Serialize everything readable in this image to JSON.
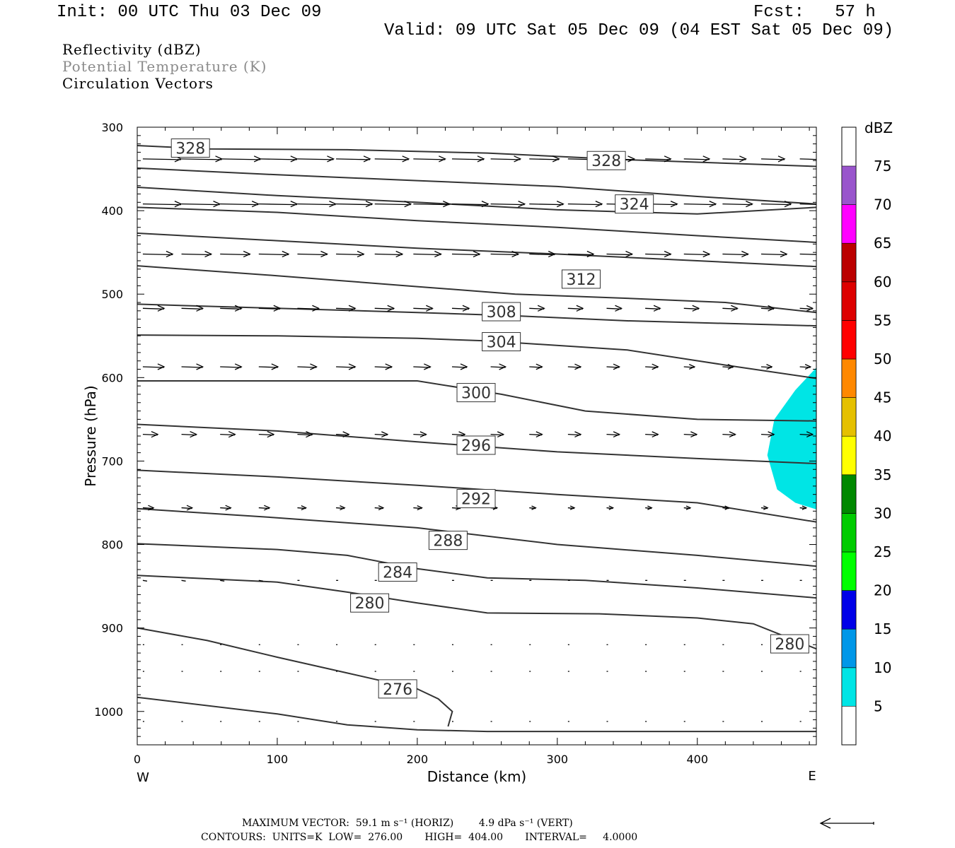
{
  "header": {
    "init": "Init: 00 UTC Thu 03 Dec 09",
    "fcst": "Fcst:   57 h",
    "valid": "Valid: 09 UTC Sat 05 Dec 09 (04 EST Sat 05 Dec 09)",
    "fields": [
      "Reflectivity (dBZ)",
      "Potential Temperature (K)",
      "Circulation Vectors"
    ]
  },
  "footer": {
    "max_vector": "MAXIMUM VECTOR:  59.1 m s⁻¹ (HORIZ)        4.9 dPa s⁻¹ (VERT)",
    "contours": "CONTOURS:  UNITS=K  LOW=  276.00       HIGH=  404.00       INTERVAL=     4.0000"
  },
  "colorbar": {
    "unit": "dBZ",
    "levels": [
      5,
      10,
      15,
      20,
      25,
      30,
      35,
      40,
      45,
      50,
      55,
      60,
      65,
      70,
      75
    ],
    "colors": [
      "#00e5e5",
      "#0097e8",
      "#0000e8",
      "#00ff00",
      "#00cc00",
      "#008800",
      "#ffff00",
      "#e5c000",
      "#ff8800",
      "#ff0000",
      "#dd0000",
      "#bb0000",
      "#ff00ff",
      "#9955cc"
    ]
  },
  "chart_data": {
    "type": "line",
    "xlabel": "Distance (km)",
    "ylabel": "Pressure (hPa)",
    "xlim": [
      0,
      485
    ],
    "ylim": [
      1040,
      300
    ],
    "xticks": [
      0,
      100,
      200,
      300,
      400
    ],
    "yticks": [
      300,
      400,
      500,
      600,
      700,
      800,
      900,
      1000
    ],
    "x_left_label": "W",
    "x_right_label": "E",
    "isentropes": [
      {
        "pts": [
          [
            0,
            322
          ],
          [
            50,
            326
          ],
          [
            150,
            327
          ],
          [
            250,
            331
          ],
          [
            350,
            339
          ],
          [
            485,
            347
          ]
        ]
      },
      {
        "pts": [
          [
            0,
            349
          ],
          [
            100,
            357
          ],
          [
            200,
            364
          ],
          [
            300,
            371
          ],
          [
            400,
            383
          ],
          [
            485,
            392
          ]
        ]
      },
      {
        "pts": [
          [
            0,
            372
          ],
          [
            100,
            382
          ],
          [
            200,
            390
          ],
          [
            300,
            399
          ],
          [
            400,
            404
          ],
          [
            485,
            396
          ]
        ]
      },
      {
        "pts": [
          [
            0,
            396
          ],
          [
            100,
            402
          ],
          [
            200,
            412
          ],
          [
            300,
            420
          ],
          [
            400,
            430
          ],
          [
            485,
            438
          ]
        ]
      },
      {
        "pts": [
          [
            0,
            427
          ],
          [
            100,
            436
          ],
          [
            200,
            445
          ],
          [
            300,
            452
          ],
          [
            400,
            460
          ],
          [
            485,
            467
          ]
        ]
      },
      {
        "pts": [
          [
            0,
            466
          ],
          [
            100,
            478
          ],
          [
            200,
            491
          ],
          [
            270,
            500
          ],
          [
            350,
            505
          ],
          [
            420,
            510
          ],
          [
            485,
            522
          ]
        ]
      },
      {
        "pts": [
          [
            0,
            512
          ],
          [
            100,
            517
          ],
          [
            200,
            522
          ],
          [
            270,
            526
          ],
          [
            350,
            532
          ],
          [
            485,
            538
          ]
        ]
      },
      {
        "pts": [
          [
            0,
            549
          ],
          [
            100,
            550
          ],
          [
            200,
            553
          ],
          [
            250,
            556
          ],
          [
            350,
            567
          ],
          [
            420,
            585
          ],
          [
            485,
            601
          ]
        ]
      },
      {
        "pts": [
          [
            0,
            604
          ],
          [
            100,
            604
          ],
          [
            200,
            604
          ],
          [
            260,
            620
          ],
          [
            320,
            640
          ],
          [
            400,
            650
          ],
          [
            485,
            652
          ]
        ]
      },
      {
        "pts": [
          [
            0,
            656
          ],
          [
            100,
            664
          ],
          [
            200,
            677
          ],
          [
            300,
            689
          ],
          [
            400,
            697
          ],
          [
            485,
            703
          ]
        ]
      },
      {
        "pts": [
          [
            0,
            711
          ],
          [
            100,
            719
          ],
          [
            200,
            729
          ],
          [
            300,
            740
          ],
          [
            400,
            750
          ],
          [
            485,
            773
          ]
        ]
      },
      {
        "pts": [
          [
            0,
            757
          ],
          [
            100,
            768
          ],
          [
            200,
            780
          ],
          [
            300,
            800
          ],
          [
            400,
            813
          ],
          [
            485,
            826
          ]
        ]
      },
      {
        "pts": [
          [
            0,
            799
          ],
          [
            100,
            806
          ],
          [
            150,
            813
          ],
          [
            200,
            829
          ],
          [
            250,
            840
          ],
          [
            320,
            843
          ],
          [
            400,
            852
          ],
          [
            485,
            864
          ]
        ]
      },
      {
        "pts": [
          [
            0,
            837
          ],
          [
            100,
            845
          ],
          [
            150,
            857
          ],
          [
            200,
            870
          ],
          [
            250,
            882
          ],
          [
            330,
            883
          ],
          [
            400,
            888
          ],
          [
            440,
            895
          ],
          [
            485,
            925
          ]
        ]
      },
      {
        "pts": [
          [
            0,
            900
          ],
          [
            50,
            915
          ],
          [
            100,
            935
          ],
          [
            150,
            954
          ],
          [
            200,
            973
          ],
          [
            215,
            985
          ],
          [
            225,
            1000
          ],
          [
            222,
            1018
          ]
        ]
      },
      {
        "pts": [
          [
            0,
            983
          ],
          [
            100,
            1003
          ],
          [
            150,
            1016
          ],
          [
            200,
            1022
          ],
          [
            250,
            1024
          ],
          [
            485,
            1024
          ]
        ]
      }
    ],
    "contour_labels": [
      {
        "text": "328",
        "x": 38,
        "p": 325
      },
      {
        "text": "328",
        "x": 335,
        "p": 340
      },
      {
        "text": "324",
        "x": 355,
        "p": 392
      },
      {
        "text": "312",
        "x": 317,
        "p": 482
      },
      {
        "text": "308",
        "x": 260,
        "p": 521
      },
      {
        "text": "304",
        "x": 260,
        "p": 557
      },
      {
        "text": "300",
        "x": 242,
        "p": 618
      },
      {
        "text": "296",
        "x": 242,
        "p": 681
      },
      {
        "text": "292",
        "x": 242,
        "p": 745
      },
      {
        "text": "288",
        "x": 222,
        "p": 795
      },
      {
        "text": "284",
        "x": 186,
        "p": 833
      },
      {
        "text": "280",
        "x": 166,
        "p": 870
      },
      {
        "text": "280",
        "x": 466,
        "p": 919
      },
      {
        "text": "276",
        "x": 186,
        "p": 973
      }
    ],
    "reflectivity_5dBZ_polygon": [
      [
        485,
        588
      ],
      [
        470,
        615
      ],
      [
        455,
        650
      ],
      [
        450,
        693
      ],
      [
        457,
        734
      ],
      [
        470,
        750
      ],
      [
        485,
        758
      ]
    ],
    "vector_rows": [
      {
        "p": 338,
        "u": [
          0.9,
          0.95,
          0.95,
          0.9,
          0.85,
          0.8,
          0.8,
          0.75,
          0.75,
          0.7,
          0.7,
          0.65,
          0.65,
          0.6,
          0.6,
          0.55,
          0.55,
          0.55
        ]
      },
      {
        "p": 392,
        "u": [
          0.9,
          0.9,
          0.9,
          0.9,
          0.9,
          0.85,
          0.85,
          0.85,
          0.85,
          0.8,
          0.8,
          0.8,
          0.75,
          0.75,
          0.75,
          0.7,
          0.7,
          0.7
        ]
      },
      {
        "p": 452,
        "u": [
          0.7,
          0.7,
          0.7,
          0.7,
          0.7,
          0.65,
          0.65,
          0.65,
          0.65,
          0.65,
          0.6,
          0.6,
          0.6,
          0.6,
          0.6,
          0.6,
          0.6,
          0.6
        ]
      },
      {
        "p": 517,
        "u": [
          0.5,
          0.5,
          0.5,
          0.5,
          0.5,
          0.45,
          0.45,
          0.45,
          0.4,
          0.4,
          0.35,
          0.35,
          0.35,
          0.35,
          0.35,
          0.35,
          0.3,
          0.3
        ]
      },
      {
        "p": 587,
        "u": [
          0.5,
          0.5,
          0.5,
          0.45,
          0.45,
          0.45,
          0.4,
          0.4,
          0.35,
          0.35,
          0.3,
          0.3,
          0.3,
          0.3,
          0.25,
          0.25,
          0.25,
          0.25
        ]
      },
      {
        "p": 668,
        "u": [
          0.35,
          0.35,
          0.35,
          0.35,
          0.35,
          0.3,
          0.3,
          0.3,
          0.3,
          0.3,
          0.3,
          0.3,
          0.3,
          0.3,
          0.3,
          0.3,
          0.3,
          0.3
        ]
      },
      {
        "p": 756,
        "u": [
          0.25,
          0.25,
          0.25,
          0.25,
          0.2,
          0.2,
          0.2,
          0.2,
          0.2,
          0.15,
          0.15,
          0.15,
          0.15,
          0.15,
          0.15,
          0.15,
          0.15,
          0.15
        ]
      },
      {
        "p": 843,
        "u": [
          0.1,
          0.1,
          0.1,
          0.1,
          0.05,
          0.05,
          0.05,
          0.05,
          0.05,
          0.05,
          0.05,
          0.05,
          0.05,
          0.05,
          0.05,
          0.05,
          0.05,
          0.05
        ]
      },
      {
        "p": 920,
        "u": [
          0.02,
          0.02,
          0.02,
          0.02,
          0.02,
          0.02,
          0.02,
          0.02,
          0.02,
          0.02,
          0.02,
          0.02,
          0.02,
          0.02,
          0.02,
          0.02,
          0.02,
          0.02
        ]
      },
      {
        "p": 952,
        "u": [
          0.02,
          0.02,
          0.02,
          0.02,
          0.02,
          0.02,
          0.02,
          0.02,
          0.02,
          0.02,
          0.02,
          0.02,
          0.02,
          0.02,
          0.02,
          0.02,
          0.02,
          0.02
        ]
      },
      {
        "p": 1012,
        "u": [
          0.02,
          0.02,
          0.02,
          0.02,
          0.02,
          0.02,
          0.02,
          0.02,
          0.02,
          0.02,
          0.02,
          0.02,
          0.02,
          0.02,
          0.02,
          0.02,
          0.02,
          0.02
        ]
      }
    ]
  }
}
